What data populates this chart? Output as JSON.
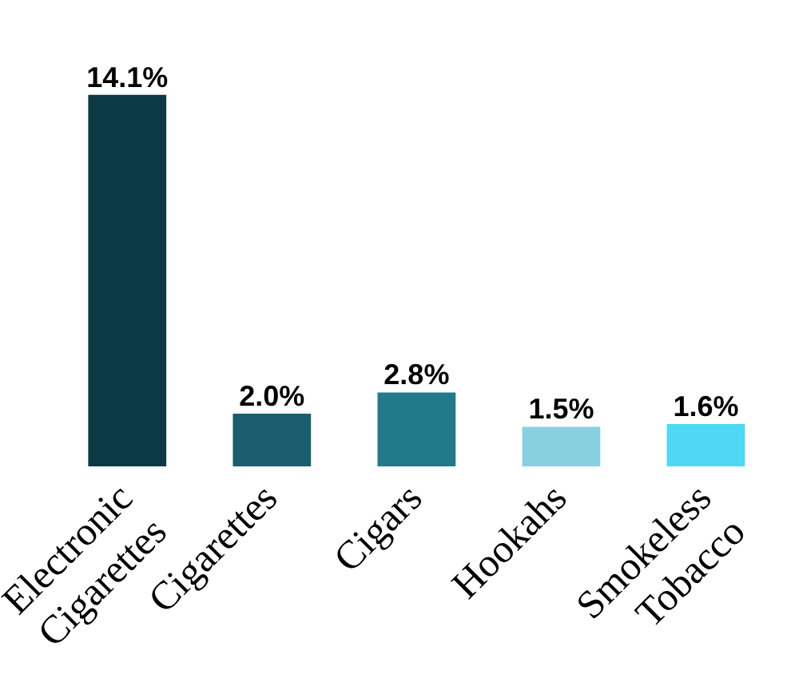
{
  "chart_data": {
    "type": "bar",
    "categories": [
      "Electronic Cigarettes",
      "Cigarettes",
      "Cigars",
      "Hookahs",
      "Smokeless Tobacco"
    ],
    "values": [
      14.1,
      2.0,
      2.8,
      1.5,
      1.6
    ],
    "colors": [
      "#0b3a45",
      "#1a5e6e",
      "#217a8a",
      "#87d0e0",
      "#4ed8f5"
    ],
    "value_labels": [
      "14.1%",
      "2.0%",
      "2.8%",
      "1.5%",
      "1.6%"
    ],
    "grid": false,
    "legend": false
  }
}
